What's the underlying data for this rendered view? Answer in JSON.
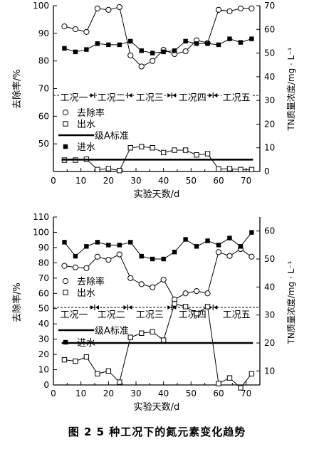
{
  "figure_caption": "图 2    5 种工况下的氮元素变化趋势",
  "chart_data": [
    {
      "type": "line",
      "xlabel": "实验天数/d",
      "ylabel_left": "去除率/%",
      "ylabel_right": "TN质量浓度/mg · L⁻¹",
      "xlim": [
        0,
        75
      ],
      "xticks": [
        0,
        10,
        20,
        30,
        40,
        50,
        60,
        70
      ],
      "ylim_left": [
        40,
        100
      ],
      "yticks_left": [
        50,
        60,
        70,
        80,
        90,
        100
      ],
      "ylim_right": [
        0,
        70
      ],
      "yticks_right": [
        0,
        10,
        20,
        30,
        40,
        50,
        60,
        70
      ],
      "conditions": [
        "工况一",
        "工况二",
        "工况三",
        "工况四",
        "工况五"
      ],
      "condition_boundaries": [
        15,
        27,
        43,
        58
      ],
      "legend": [
        "去除率",
        "出水",
        "一级A标准",
        "进水"
      ],
      "series": [
        {
          "name": "去除率",
          "axis": "left",
          "marker": "open-circle",
          "x": [
            4,
            8,
            12,
            16,
            20,
            24,
            28,
            32,
            36,
            40,
            44,
            48,
            52,
            56,
            60,
            64,
            68,
            72
          ],
          "y": [
            92.5,
            91.5,
            90.5,
            99,
            98.5,
            99.5,
            82,
            78,
            80,
            84,
            82.5,
            83.5,
            87.5,
            86.5,
            98.5,
            98,
            99,
            99
          ]
        },
        {
          "name": "出水",
          "axis": "right",
          "marker": "open-square",
          "x": [
            4,
            8,
            12,
            16,
            20,
            24,
            28,
            32,
            36,
            40,
            44,
            48,
            52,
            56,
            60,
            64,
            68,
            72
          ],
          "y": [
            4.8,
            4.8,
            5.2,
            0.8,
            1.2,
            0.4,
            10,
            10.5,
            10,
            8,
            9,
            9,
            7,
            7.5,
            1,
            1.2,
            0.8,
            0.8
          ]
        },
        {
          "name": "进水",
          "axis": "right",
          "marker": "filled-square",
          "x": [
            4,
            8,
            12,
            16,
            20,
            24,
            28,
            32,
            36,
            40,
            44,
            48,
            52,
            56,
            60,
            64,
            68,
            72
          ],
          "y": [
            52,
            50.5,
            51.5,
            54,
            53.5,
            53.5,
            55,
            51,
            50,
            50.5,
            51,
            55,
            54,
            54,
            53.5,
            56,
            54.5,
            56
          ]
        },
        {
          "name": "一级A标准",
          "axis": "right",
          "style": "thick-line",
          "y_const": 5
        }
      ]
    },
    {
      "type": "line",
      "xlabel": "实验天数/d",
      "ylabel_left": "去除率/%",
      "ylabel_right": "TN质量浓度/mg · L⁻¹",
      "xlim": [
        0,
        75
      ],
      "xticks": [
        0,
        10,
        20,
        30,
        40,
        50,
        60,
        70
      ],
      "ylim_left": [
        0,
        110
      ],
      "yticks_left": [
        0,
        10,
        20,
        30,
        40,
        50,
        60,
        70,
        80,
        90,
        100,
        110
      ],
      "ylim_right": [
        5,
        65
      ],
      "yticks_right": [
        10,
        20,
        30,
        40,
        50,
        60
      ],
      "conditions": [
        "工况一",
        "工况二",
        "工况三",
        "工况四",
        "工况五"
      ],
      "condition_boundaries": [
        15,
        27,
        43,
        58
      ],
      "legend": [
        "去除率",
        "出水",
        "一级A标准",
        "进水"
      ],
      "series": [
        {
          "name": "去除率",
          "axis": "left",
          "marker": "open-circle",
          "x": [
            4,
            8,
            12,
            16,
            20,
            24,
            28,
            32,
            36,
            40,
            44,
            48,
            52,
            56,
            60,
            64,
            68,
            72
          ],
          "y": [
            78,
            77,
            76.5,
            84,
            82,
            85.5,
            70,
            66,
            64,
            69,
            56,
            60,
            61.5,
            60,
            87,
            84.5,
            89,
            84
          ]
        },
        {
          "name": "出水",
          "axis": "right",
          "marker": "open-square",
          "x": [
            4,
            8,
            12,
            16,
            20,
            24,
            28,
            32,
            36,
            40,
            44,
            48,
            52,
            56,
            60,
            64,
            68,
            72
          ],
          "y": [
            14,
            13.5,
            15,
            9,
            10,
            6,
            22,
            23.5,
            24,
            21,
            34,
            33,
            30.5,
            33,
            5.5,
            7.5,
            4,
            9
          ]
        },
        {
          "name": "进水",
          "axis": "right",
          "marker": "filled-square",
          "x": [
            4,
            8,
            12,
            16,
            20,
            24,
            28,
            32,
            36,
            40,
            44,
            48,
            52,
            56,
            60,
            64,
            68,
            72
          ],
          "y": [
            56,
            51,
            54.5,
            56,
            55,
            55,
            56,
            51,
            50,
            50,
            52.5,
            57,
            54.5,
            56.5,
            55,
            57.5,
            54.5,
            59.5
          ]
        },
        {
          "name": "一级A标准",
          "axis": "right",
          "style": "thick-line",
          "y_const": 20
        }
      ]
    }
  ]
}
